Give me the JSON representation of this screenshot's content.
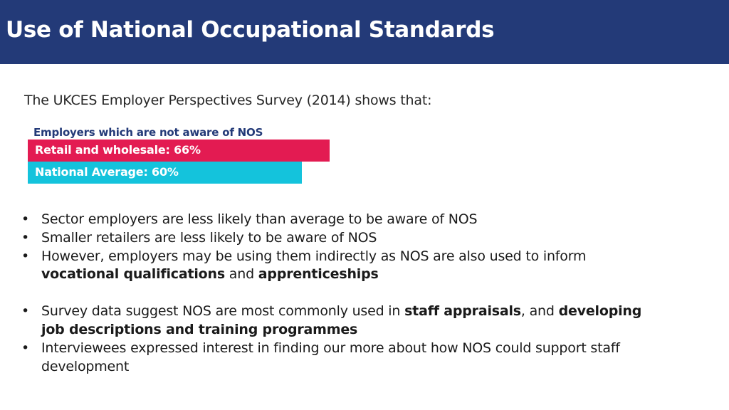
{
  "header": {
    "title": "Use of National Occupational Standards",
    "bg_color": "#233a78"
  },
  "intro": "The UKCES Employer Perspectives Survey (2014)  shows that:",
  "chart_data": {
    "type": "bar",
    "title": "Employers which are not aware of NOS",
    "categories": [
      "Retail and wholesale",
      "National Average"
    ],
    "labels": [
      "Retail and wholesale: 66%",
      "National Average: 60%"
    ],
    "values": [
      66,
      60
    ],
    "unit": "%",
    "colors": [
      "#e31b52",
      "#14c3dc"
    ]
  },
  "bullets": {
    "b1": "Sector employers are less likely than average to be aware of NOS",
    "b2": "Smaller retailers are less likely to be aware of NOS",
    "b3_text": "However, employers may be using them indirectly as NOS are also used to inform ",
    "b3_bold1": "vocational qualifications",
    "b3_and": " and ",
    "b3_bold2": "apprenticeships",
    "b4_text": "Survey data suggest NOS are most commonly used in ",
    "b4_bold1": "staff appraisals",
    "b4_mid": ", and ",
    "b4_bold2": "developing job descriptions and training programmes",
    "b5": "Interviewees expressed interest in finding our more about how NOS could support staff development",
    "marker": "•"
  }
}
